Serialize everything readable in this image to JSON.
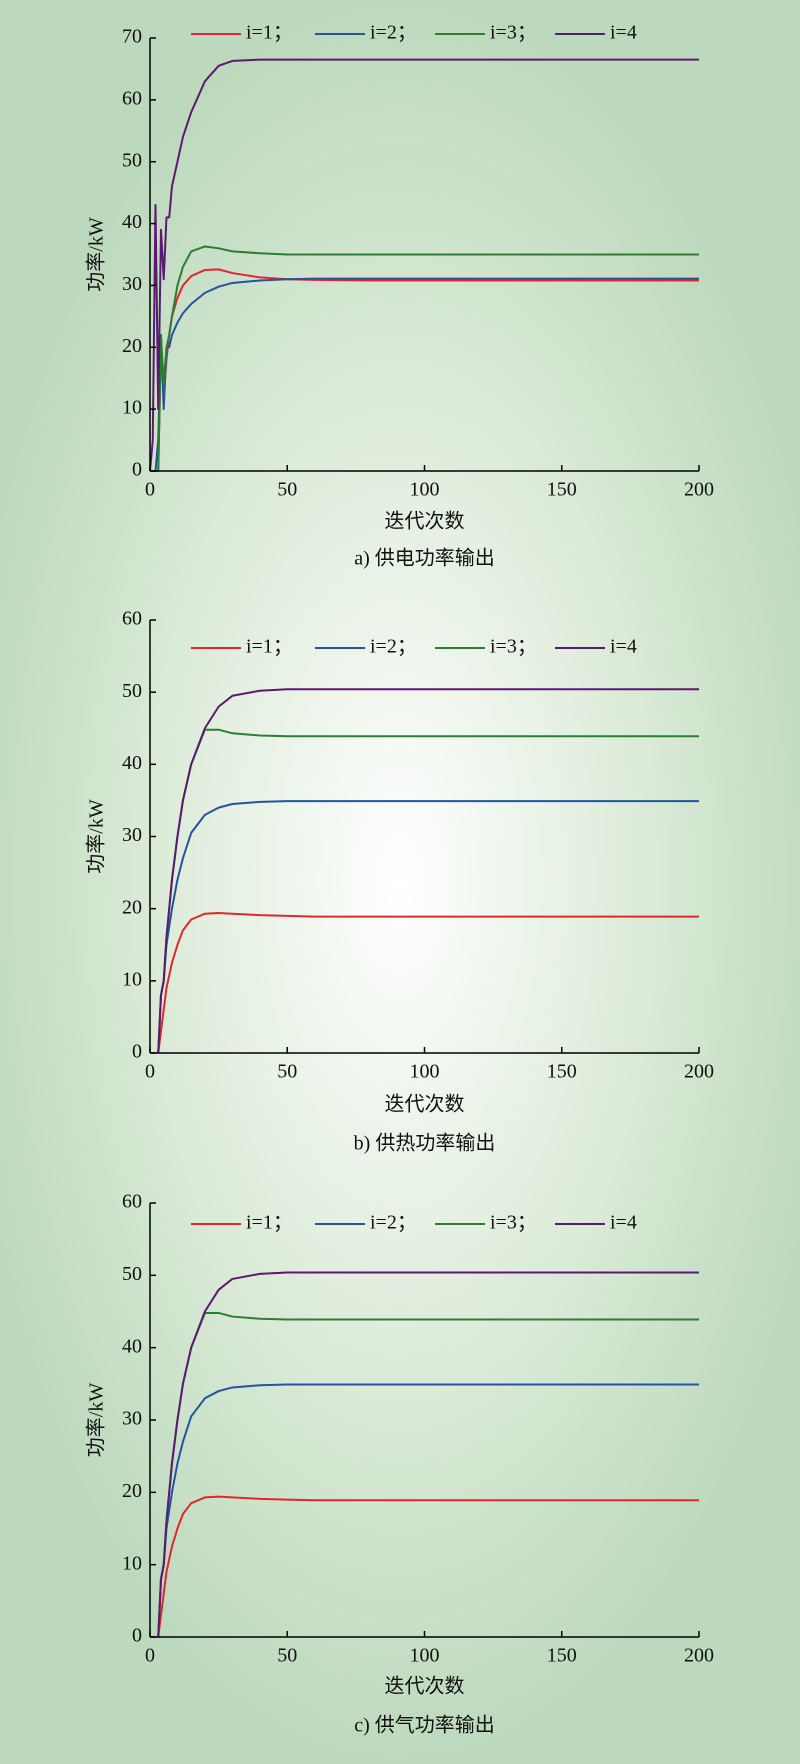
{
  "chart_data": [
    {
      "type": "line",
      "caption": "a) 供电功率输出",
      "xlabel": "迭代次数",
      "ylabel": "功率/kW",
      "x": [
        0,
        1,
        2,
        3,
        4,
        5,
        6,
        7,
        8,
        10,
        12,
        15,
        20,
        25,
        30,
        40,
        50,
        60,
        80,
        100,
        125,
        150,
        175,
        200
      ],
      "xlim": [
        0,
        200
      ],
      "xticks": [
        0,
        50,
        100,
        150,
        200
      ],
      "ylim": [
        0,
        70
      ],
      "yticks": [
        0,
        10,
        20,
        30,
        40,
        50,
        60,
        70
      ],
      "legend": "top",
      "series": [
        {
          "name": "i=1；",
          "color": "#e3262b",
          "values": [
            0,
            0,
            0,
            0,
            20,
            12,
            18,
            22,
            25,
            28,
            30,
            31.5,
            32.5,
            32.6,
            32,
            31.3,
            31,
            30.9,
            30.8,
            30.8,
            30.8,
            30.8,
            30.8,
            30.8
          ]
        },
        {
          "name": "i=2；",
          "color": "#24539f",
          "values": [
            0,
            0,
            0,
            5,
            22,
            10,
            20,
            20,
            22,
            24,
            25.5,
            27,
            28.8,
            29.8,
            30.4,
            30.8,
            31,
            31.1,
            31.1,
            31.1,
            31.1,
            31.1,
            31.1,
            31.1
          ]
        },
        {
          "name": "i=3；",
          "color": "#2e7d34",
          "values": [
            0,
            0,
            0,
            0,
            22,
            14,
            20,
            22,
            25,
            30,
            33,
            35.5,
            36.3,
            36,
            35.5,
            35.2,
            35,
            35,
            35,
            35,
            35,
            35,
            35,
            35
          ]
        },
        {
          "name": "i=4",
          "color": "#5a1b6e",
          "values": [
            0,
            5,
            43,
            10,
            39,
            31,
            41,
            41,
            46,
            50,
            54,
            58,
            63,
            65.5,
            66.3,
            66.5,
            66.5,
            66.5,
            66.5,
            66.5,
            66.5,
            66.5,
            66.5,
            66.5
          ]
        }
      ]
    },
    {
      "type": "line",
      "caption": "b) 供热功率输出",
      "xlabel": "迭代次数",
      "ylabel": "功率/kW",
      "x": [
        3,
        4,
        5,
        6,
        8,
        10,
        12,
        15,
        20,
        25,
        30,
        40,
        50,
        60,
        80,
        100,
        125,
        150,
        175,
        200
      ],
      "xlim": [
        0,
        200
      ],
      "xticks": [
        0,
        50,
        100,
        150,
        200
      ],
      "ylim": [
        0,
        60
      ],
      "yticks": [
        0,
        10,
        20,
        30,
        40,
        50,
        60
      ],
      "legend": "top",
      "series": [
        {
          "name": "i=1；",
          "color": "#e3262b",
          "values": [
            0,
            3,
            6,
            9,
            12.5,
            15,
            17,
            18.5,
            19.3,
            19.4,
            19.3,
            19.1,
            19,
            18.9,
            18.9,
            18.9,
            18.9,
            18.9,
            18.9,
            18.9
          ]
        },
        {
          "name": "i=2；",
          "color": "#24539f",
          "values": [
            0,
            8,
            10,
            15,
            20,
            24,
            27,
            30.5,
            33,
            34,
            34.5,
            34.8,
            34.9,
            34.9,
            34.9,
            34.9,
            34.9,
            34.9,
            34.9,
            34.9
          ]
        },
        {
          "name": "i=3；",
          "color": "#2e7d34",
          "values": [
            0,
            8,
            10,
            16,
            24,
            30,
            35,
            40,
            44.8,
            44.8,
            44.3,
            44,
            43.9,
            43.9,
            43.9,
            43.9,
            43.9,
            43.9,
            43.9,
            43.9
          ]
        },
        {
          "name": "i=4",
          "color": "#5a1b6e",
          "values": [
            0,
            8,
            10,
            16,
            24,
            30,
            35,
            40,
            45,
            48,
            49.5,
            50.2,
            50.4,
            50.4,
            50.4,
            50.4,
            50.4,
            50.4,
            50.4,
            50.4
          ]
        }
      ]
    },
    {
      "type": "line",
      "caption": "c) 供气功率输出",
      "xlabel": "迭代次数",
      "ylabel": "功率/kW",
      "x": [
        3,
        4,
        5,
        6,
        8,
        10,
        12,
        15,
        20,
        25,
        30,
        40,
        50,
        60,
        80,
        100,
        125,
        150,
        175,
        200
      ],
      "xlim": [
        0,
        200
      ],
      "xticks": [
        0,
        50,
        100,
        150,
        200
      ],
      "ylim": [
        0,
        60
      ],
      "yticks": [
        0,
        10,
        20,
        30,
        40,
        50,
        60
      ],
      "legend": "top",
      "series": [
        {
          "name": "i=1；",
          "color": "#e3262b",
          "values": [
            0,
            3,
            6,
            9,
            12.5,
            15,
            17,
            18.5,
            19.3,
            19.4,
            19.3,
            19.1,
            19,
            18.9,
            18.9,
            18.9,
            18.9,
            18.9,
            18.9,
            18.9
          ]
        },
        {
          "name": "i=2；",
          "color": "#24539f",
          "values": [
            0,
            8,
            10,
            15,
            20,
            24,
            27,
            30.5,
            33,
            34,
            34.5,
            34.8,
            34.9,
            34.9,
            34.9,
            34.9,
            34.9,
            34.9,
            34.9,
            34.9
          ]
        },
        {
          "name": "i=3；",
          "color": "#2e7d34",
          "values": [
            0,
            8,
            10,
            16,
            24,
            30,
            35,
            40,
            44.8,
            44.8,
            44.3,
            44,
            43.9,
            43.9,
            43.9,
            43.9,
            43.9,
            43.9,
            43.9,
            43.9
          ]
        },
        {
          "name": "i=4",
          "color": "#5a1b6e",
          "values": [
            0,
            8,
            10,
            16,
            24,
            30,
            35,
            40,
            45,
            48,
            49.5,
            50.2,
            50.4,
            50.4,
            50.4,
            50.4,
            50.4,
            50.4,
            50.4,
            50.4
          ]
        }
      ]
    }
  ]
}
